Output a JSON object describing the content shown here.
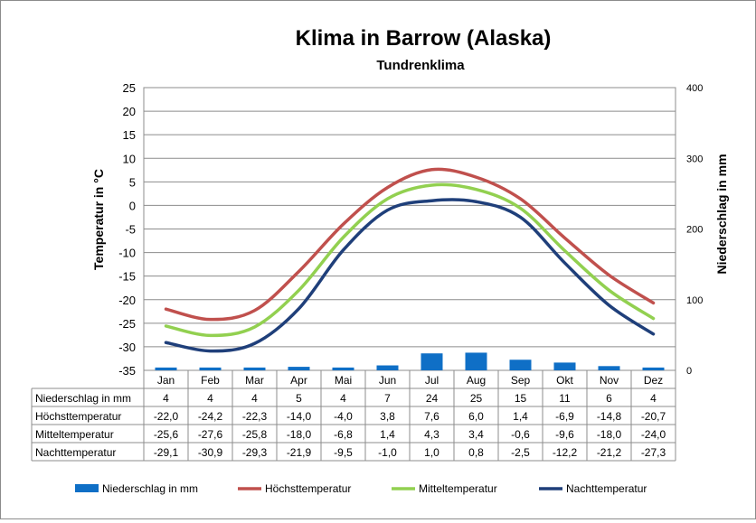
{
  "chart_data": {
    "type": "line",
    "title": "Klima in Barrow (Alaska)",
    "subtitle": "Tundrenklima",
    "ylabel": "Temperatur in °C",
    "y2label": "Niederschlag in mm",
    "ylim": [
      -35,
      25
    ],
    "y_ticks": [
      "25",
      "20",
      "15",
      "10",
      "5",
      "0",
      "-5",
      "-10",
      "-15",
      "-20",
      "-25",
      "-30",
      "-35"
    ],
    "y2lim": [
      0,
      400
    ],
    "y2_ticks": [
      "400",
      "300",
      "200",
      "100",
      "0"
    ],
    "grid": true,
    "legend_position": "bottom",
    "categories": [
      "Jan",
      "Feb",
      "Mar",
      "Apr",
      "Mai",
      "Jun",
      "Jul",
      "Aug",
      "Sep",
      "Okt",
      "Nov",
      "Dez"
    ],
    "series": [
      {
        "name": "Niederschlag in mm",
        "type": "bar",
        "axis": "right",
        "color": "#0f6fc6",
        "values": [
          4,
          4,
          4,
          5,
          4,
          7,
          24,
          25,
          15,
          11,
          6,
          4
        ],
        "labels": [
          "4",
          "4",
          "4",
          "5",
          "4",
          "7",
          "24",
          "25",
          "15",
          "11",
          "6",
          "4"
        ]
      },
      {
        "name": "Höchsttemperatur",
        "type": "line",
        "axis": "left",
        "color": "#c0504d",
        "values": [
          -22.0,
          -24.2,
          -22.3,
          -14.0,
          -4.0,
          3.8,
          7.6,
          6.0,
          1.4,
          -6.9,
          -14.8,
          -20.7
        ],
        "labels": [
          "-22,0",
          "-24,2",
          "-22,3",
          "-14,0",
          "-4,0",
          "3,8",
          "7,6",
          "6,0",
          "1,4",
          "-6,9",
          "-14,8",
          "-20,7"
        ]
      },
      {
        "name": "Mitteltemperatur",
        "type": "line",
        "axis": "left",
        "color": "#92d050",
        "values": [
          -25.6,
          -27.6,
          -25.8,
          -18.0,
          -6.8,
          1.4,
          4.3,
          3.4,
          -0.6,
          -9.6,
          -18.0,
          -24.0
        ],
        "labels": [
          "-25,6",
          "-27,6",
          "-25,8",
          "-18,0",
          "-6,8",
          "1,4",
          "4,3",
          "3,4",
          "-0,6",
          "-9,6",
          "-18,0",
          "-24,0"
        ]
      },
      {
        "name": "Nachttemperatur",
        "type": "line",
        "axis": "left",
        "color": "#1f3f7a",
        "values": [
          -29.1,
          -30.9,
          -29.3,
          -21.9,
          -9.5,
          -1.0,
          1.0,
          0.8,
          -2.5,
          -12.2,
          -21.2,
          -27.3
        ],
        "labels": [
          "-29,1",
          "-30,9",
          "-29,3",
          "-21,9",
          "-9,5",
          "-1,0",
          "1,0",
          "0,8",
          "-2,5",
          "-12,2",
          "-21,2",
          "-27,3"
        ]
      }
    ]
  }
}
